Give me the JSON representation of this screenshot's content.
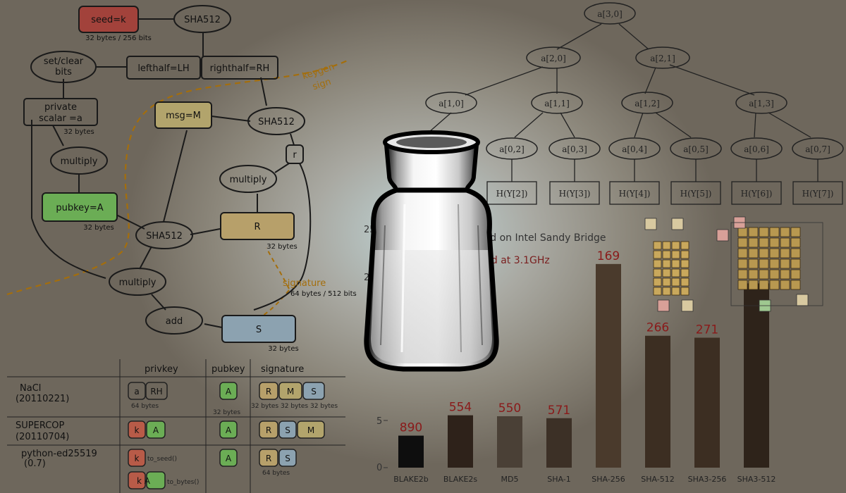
{
  "ed25519_diagram": {
    "seed": "seed=k",
    "seed_size": "32 bytes / 256 bits",
    "sha512_top": "SHA512",
    "set_clear": [
      "set/clear",
      "bits"
    ],
    "lefthalf": "lefthalf=LH",
    "righthalf": "righthalf=RH",
    "keygen": "keygen",
    "sign": "sign",
    "private_scalar": [
      "private",
      "scalar =a"
    ],
    "private_size": "32 bytes",
    "msg": "msg=M",
    "sha512_right": "SHA512",
    "r": "r",
    "multiply_left": "multiply",
    "multiply_mid": "multiply",
    "multiply_low": "multiply",
    "pubkey": "pubkey=A",
    "pubkey_size": "32 bytes",
    "sha512_mid": "SHA512",
    "R": "R",
    "R_size": "32 bytes",
    "signature": "signature",
    "signature_size": "64 bytes / 512 bits",
    "add": "add",
    "S": "S",
    "S_size": "32 bytes"
  },
  "format_table": {
    "headers": [
      "privkey",
      "pubkey",
      "signature"
    ],
    "rows": [
      {
        "name": [
          "NaCl",
          "(20110221)"
        ],
        "priv": [
          "a",
          "RH"
        ],
        "priv_note": "64 bytes",
        "pub": [
          "A"
        ],
        "pub_note": "32 bytes",
        "sig": [
          "R",
          "M",
          "S"
        ],
        "sig_note": [
          "32 bytes",
          "32 bytes",
          "32 bytes"
        ]
      },
      {
        "name": [
          "SUPERCOP",
          "(20110704)"
        ],
        "priv": [
          "k",
          "A"
        ],
        "pub": [
          "A"
        ],
        "sig": [
          "R",
          "S",
          "M"
        ]
      },
      {
        "name": [
          "python-ed25519",
          "(0.7)"
        ],
        "priv": [
          "k",
          "k A"
        ],
        "priv_notes": [
          "to_seed()",
          "to_bytes()"
        ],
        "pub": [
          "A"
        ],
        "sig": [
          "R",
          "S"
        ],
        "sig_note": "64 bytes"
      }
    ]
  },
  "merkle_tree": {
    "root": "a[3,0]",
    "level2": [
      "a[2,0]",
      "a[2,1]"
    ],
    "level1": [
      "a[1,0]",
      "a[1,1]",
      "a[1,2]",
      "a[1,3]"
    ],
    "level0": [
      "a[0,2]",
      "a[0,3]",
      "a[0,4]",
      "a[0,5]",
      "a[0,6]",
      "a[0,7]"
    ],
    "leaves": [
      "H(Y[2])",
      "H(Y[3])",
      "H(Y[4])",
      "H(Y[5])",
      "H(Y[6])",
      "H(Y[7])"
    ]
  },
  "chart_text": {
    "title_partial_1": "eed on Intel Sandy Bridge",
    "title_partial_2": "nd at 3.1GHz",
    "ytick_25": "25",
    "ytick_2": "2",
    "ytick_5": "5",
    "ytick_0": "0"
  },
  "chart_data": {
    "type": "bar",
    "categories": [
      "BLAKE2b",
      "BLAKE2s",
      "MD5",
      "SHA-1",
      "SHA-256",
      "SHA-512",
      "SHA3-256",
      "SHA3-512"
    ],
    "values": [
      3.3,
      5.4,
      5.3,
      5.1,
      21.0,
      13.6,
      13.4,
      19.0
    ],
    "labels": [
      "890",
      "554",
      "550",
      "571",
      "169",
      "266",
      "271",
      ""
    ],
    "bar_colors": [
      "#0e0e0e",
      "#2e221a",
      "#4a4036",
      "#3c3026",
      "#4a3a2c",
      "#3c2e22",
      "#3c2e22",
      "#2e231a"
    ],
    "ylim": [
      0,
      26
    ]
  },
  "colors": {
    "seed_fill": "#a2423b",
    "msg_fill": "#b2a46c",
    "pubkey_fill": "#6bad55",
    "R_fill": "#b7a06a",
    "S_fill": "#8ca2b0",
    "dashed": "#a46e0c"
  }
}
